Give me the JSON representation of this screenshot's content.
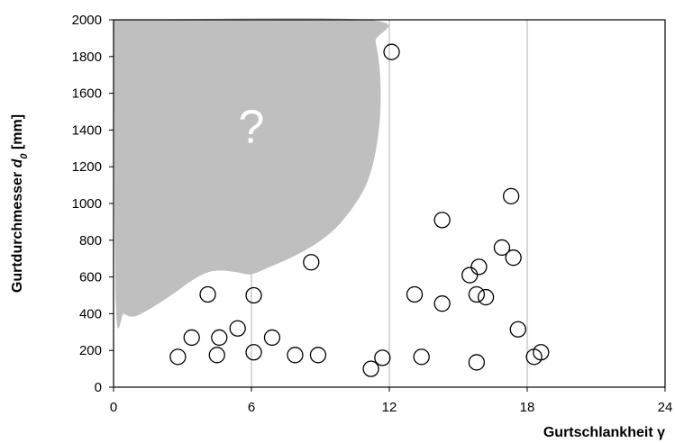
{
  "chart_data": {
    "type": "scatter",
    "title": "",
    "xlabel": "Gurtschlankheit γ",
    "ylabel": {
      "main": "Gurtdurchmesser ",
      "symbol": "d",
      "subscript": "0",
      "unit": " [mm]"
    },
    "xlim": [
      0,
      24
    ],
    "ylim": [
      0,
      2000
    ],
    "x_ticks": [
      0,
      6,
      12,
      18,
      24
    ],
    "y_ticks": [
      0,
      200,
      400,
      600,
      800,
      1000,
      1200,
      1400,
      1600,
      1800,
      2000
    ],
    "grid": {
      "x": true,
      "y": false
    },
    "marker": "open-circle",
    "colors": {
      "region": "#bfbfbf",
      "marker_edge": "#000000",
      "grid": "#bfbfbf"
    },
    "annotations": [
      {
        "text": "?"
      }
    ],
    "unknown_region": {
      "x": [
        0.02,
        0.1,
        0.45,
        0.9,
        1.5,
        2.5,
        3.4,
        4.1,
        4.7,
        5.4,
        6.0,
        6.8,
        7.8,
        8.8,
        9.7,
        10.5,
        11.05,
        11.4,
        11.6,
        11.6,
        11.4,
        11.05,
        0.02
      ],
      "y": [
        2000,
        450,
        400,
        385,
        420,
        500,
        580,
        625,
        635,
        625,
        615,
        655,
        710,
        780,
        870,
        995,
        1120,
        1280,
        1480,
        1700,
        1880,
        2000,
        2000
      ]
    },
    "points": {
      "x": [
        2.8,
        3.4,
        4.1,
        4.5,
        4.6,
        5.4,
        6.1,
        6.1,
        6.9,
        7.9,
        8.6,
        8.9,
        11.2,
        11.7,
        12.1,
        13.1,
        13.4,
        14.3,
        14.3,
        15.5,
        15.8,
        15.8,
        15.9,
        16.2,
        16.9,
        17.3,
        17.4,
        17.6,
        18.3,
        18.6
      ],
      "y": [
        165,
        270,
        505,
        175,
        270,
        320,
        500,
        190,
        270,
        175,
        680,
        175,
        100,
        160,
        1825,
        505,
        165,
        910,
        455,
        610,
        135,
        505,
        655,
        490,
        760,
        1040,
        705,
        315,
        165,
        190
      ]
    }
  }
}
